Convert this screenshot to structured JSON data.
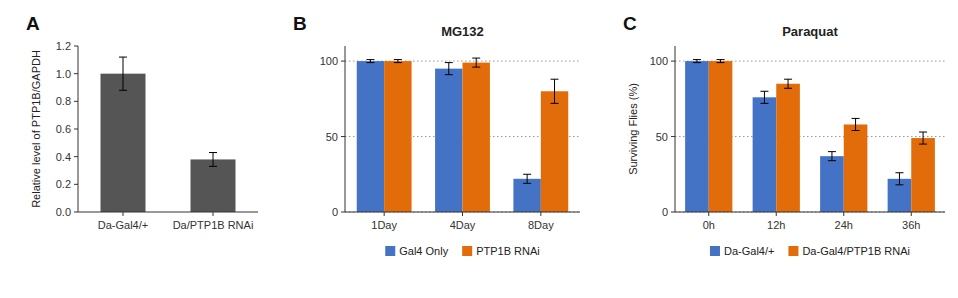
{
  "chart_data": [
    {
      "type": "bar",
      "annotations": [
        "A"
      ],
      "categories": [
        "Da-Gal4/+",
        "Da/PTP1B RNAi"
      ],
      "values": [
        1.0,
        0.38
      ],
      "errors": [
        0.12,
        0.05
      ],
      "color": "#555555",
      "ylabel": "Relative level of PTP1B/GAPDH",
      "ylim": [
        0,
        1.2
      ],
      "yticks": [
        {
          "value": 0.0,
          "label": "0.0"
        },
        0.2,
        0.4,
        0.6,
        0.8,
        {
          "value": 1.0,
          "label": "1.0"
        },
        1.2
      ]
    },
    {
      "type": "bar",
      "title": "MG132",
      "annotations": [
        "B"
      ],
      "categories": [
        "1Day",
        "4Day",
        "8Day"
      ],
      "series": [
        {
          "name": "Gal4 Only",
          "color": "#4472C4",
          "values": [
            100,
            95,
            22
          ],
          "errors": [
            1,
            4,
            3
          ]
        },
        {
          "name": "PTP1B RNAi",
          "color": "#E36C0A",
          "values": [
            100,
            99,
            80
          ],
          "errors": [
            1,
            3,
            8
          ]
        }
      ],
      "ylim": [
        0,
        110
      ],
      "yticks": [
        0,
        50,
        100
      ],
      "grid": true,
      "legend": "bottom"
    },
    {
      "type": "bar",
      "title": "Paraquat",
      "annotations": [
        "C"
      ],
      "categories": [
        "0h",
        "12h",
        "24h",
        "36h"
      ],
      "series": [
        {
          "name": "Da-Gal4/+",
          "color": "#4472C4",
          "values": [
            100,
            76,
            37,
            22
          ],
          "errors": [
            1,
            4,
            3,
            4
          ]
        },
        {
          "name": "Da-Gal4/PTP1B RNAi",
          "color": "#E36C0A",
          "values": [
            100,
            85,
            58,
            49
          ],
          "errors": [
            1,
            3,
            4,
            4
          ]
        }
      ],
      "ylabel": "Surviving Flies (%)",
      "ylim": [
        0,
        110
      ],
      "yticks": [
        0,
        50,
        100
      ],
      "grid": true,
      "legend": "bottom"
    }
  ]
}
